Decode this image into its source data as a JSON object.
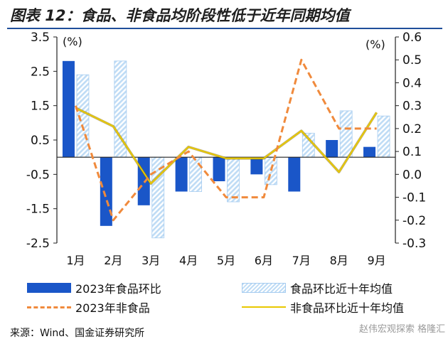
{
  "header": {
    "title": "图表 12：食品、非食品均阶段性低于近年同期均值"
  },
  "chart_data": {
    "type": "bar",
    "categories": [
      "1月",
      "2月",
      "3月",
      "4月",
      "5月",
      "6月",
      "7月",
      "8月",
      "9月"
    ],
    "left_axis": {
      "unit": "(%)",
      "ylim": [
        -2.5,
        3.5
      ],
      "ticks": [
        3.5,
        2.5,
        1.5,
        0.5,
        -0.5,
        -1.5,
        -2.5
      ],
      "tick_labels": [
        "3.5",
        "2.5",
        "1.5",
        "0.5",
        "-0.5",
        "-1.5",
        "-2.5"
      ]
    },
    "right_axis": {
      "unit": "(%)",
      "ylim": [
        -0.3,
        0.6
      ],
      "ticks": [
        0.6,
        0.5,
        0.4,
        0.3,
        0.2,
        0.1,
        0.0,
        -0.1,
        -0.2,
        -0.3
      ],
      "tick_labels": [
        "0.6",
        "0.5",
        "0.4",
        "0.3",
        "0.2",
        "0.1",
        "0.0",
        "-0.1",
        "-0.2",
        "-0.3"
      ]
    },
    "series": [
      {
        "name": "2023年食品环比",
        "type": "bar",
        "axis": "left",
        "color": "#1a56c8",
        "values": [
          2.8,
          -2.0,
          -1.4,
          -1.0,
          -0.7,
          -0.5,
          -1.0,
          0.5,
          0.3
        ]
      },
      {
        "name": "食品环比近十年均值",
        "type": "bar-hatched",
        "axis": "left",
        "color": "#bfdcf5",
        "values": [
          2.4,
          2.8,
          -2.35,
          -1.0,
          -1.3,
          -0.8,
          0.7,
          1.35,
          1.2
        ]
      },
      {
        "name": "2023年非食品",
        "type": "line-dashed",
        "axis": "right",
        "color": "#f08a3c",
        "values": [
          0.3,
          -0.2,
          0.0,
          0.1,
          -0.1,
          -0.1,
          0.5,
          0.2,
          0.2
        ]
      },
      {
        "name": "非食品环比近十年均值",
        "type": "line",
        "axis": "right",
        "color": "#e8c800",
        "values": [
          0.29,
          0.21,
          -0.04,
          0.12,
          0.07,
          0.07,
          0.19,
          0.01,
          0.27
        ]
      }
    ],
    "legend": "bottom",
    "grid": false
  },
  "footer": {
    "source": "来源：Wind、国金证券研究所",
    "watermark": "赵伟宏观探索 格隆汇"
  }
}
